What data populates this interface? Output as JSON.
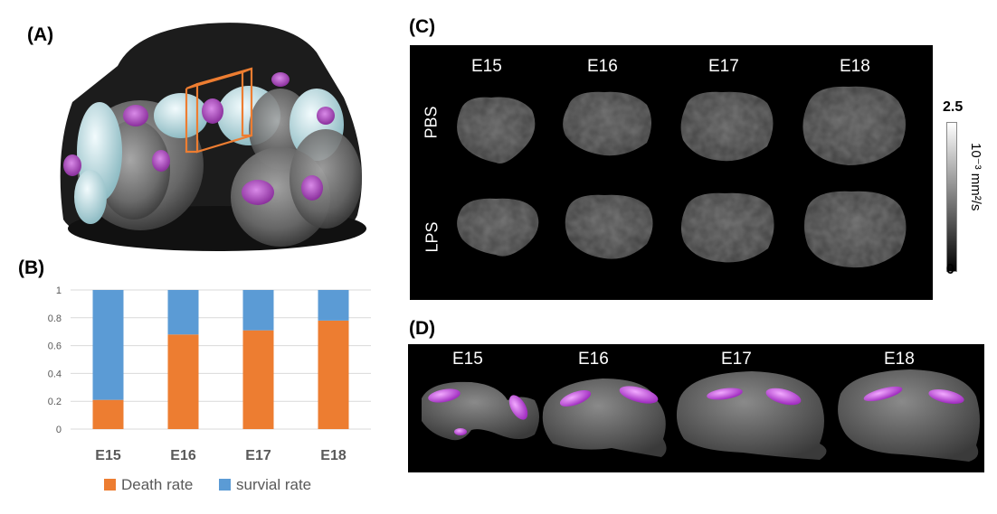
{
  "panels": {
    "a": "(A)",
    "b": "(B)",
    "c": "(C)",
    "d": "(D)"
  },
  "panel_c": {
    "columns": [
      "E15",
      "E16",
      "E17",
      "E18"
    ],
    "rows": [
      "PBS",
      "LPS"
    ],
    "colorbar": {
      "max": "2.5",
      "min": "0",
      "unit": "10⁻³ mm²/s"
    }
  },
  "panel_d": {
    "columns": [
      "E15",
      "E16",
      "E17",
      "E18"
    ]
  },
  "colors": {
    "death": "#ED7D31",
    "survival": "#5B9BD5",
    "grid": "#d9d9d9",
    "tick": "#595959"
  },
  "chart_data": {
    "type": "bar",
    "stacked": true,
    "categories": [
      "E15",
      "E16",
      "E17",
      "E18"
    ],
    "series": [
      {
        "name": "Death rate",
        "values": [
          0.21,
          0.68,
          0.71,
          0.78
        ]
      },
      {
        "name": "survial rate",
        "values": [
          0.79,
          0.32,
          0.29,
          0.22
        ]
      }
    ],
    "ylim": [
      0,
      1
    ],
    "yticks": [
      "0",
      "0.2",
      "0.4",
      "0.6",
      "0.8",
      "1"
    ],
    "grid": true,
    "legend_position": "bottom"
  }
}
